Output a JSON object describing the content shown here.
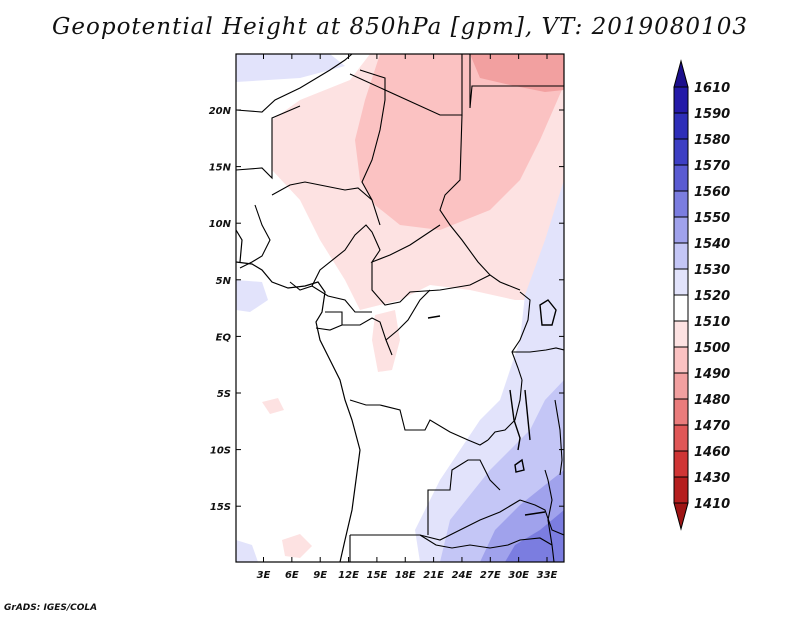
{
  "title": "Geopotential Height at 850hPa [gpm], VT: 2019080103",
  "credit": "GrADS: IGES/COLA",
  "axes": {
    "lat_labels": [
      "20N",
      "15N",
      "10N",
      "5N",
      "EQ",
      "5S",
      "10S",
      "15S"
    ],
    "lon_labels": [
      "3E",
      "6E",
      "9E",
      "12E",
      "15E",
      "18E",
      "21E",
      "24E",
      "27E",
      "30E",
      "33E"
    ]
  },
  "legend": {
    "levels": [
      {
        "label": "1610",
        "color": "#1c0f8c"
      },
      {
        "label": "1590",
        "color": "#241aa8"
      },
      {
        "label": "1580",
        "color": "#2e2eb8"
      },
      {
        "label": "1570",
        "color": "#3d3fc4"
      },
      {
        "label": "1560",
        "color": "#5a5bd2"
      },
      {
        "label": "1550",
        "color": "#7b7de0"
      },
      {
        "label": "1540",
        "color": "#a0a2ec"
      },
      {
        "label": "1530",
        "color": "#c4c6f6"
      },
      {
        "label": "1520",
        "color": "#e2e3fb"
      },
      {
        "label": "1510",
        "color": "#ffffff"
      },
      {
        "label": "1500",
        "color": "#fde2e2"
      },
      {
        "label": "1490",
        "color": "#fbc2c2"
      },
      {
        "label": "1480",
        "color": "#f2a0a0"
      },
      {
        "label": "1470",
        "color": "#ea7c7c"
      },
      {
        "label": "1460",
        "color": "#e05757"
      },
      {
        "label": "1430",
        "color": "#cf3535"
      },
      {
        "label": "1410",
        "color": "#b51e1e"
      }
    ],
    "bottom_color": "#9e1414"
  }
}
